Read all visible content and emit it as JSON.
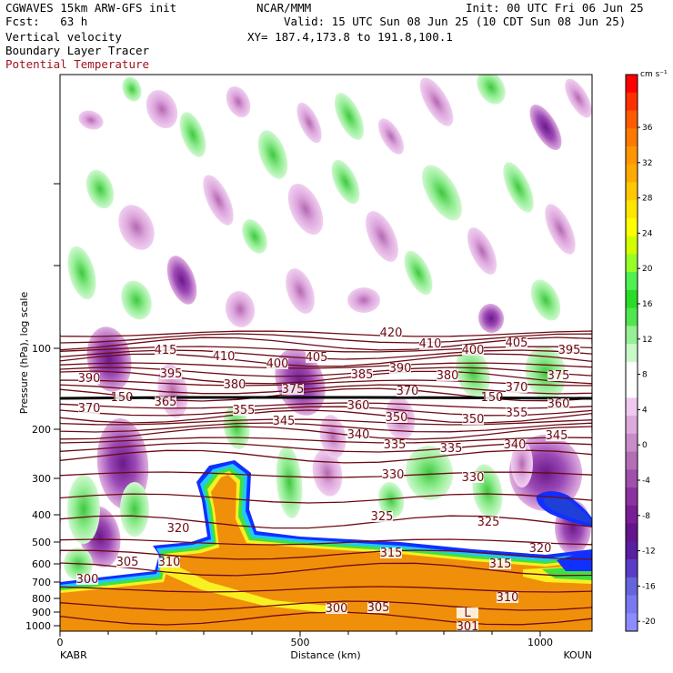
{
  "header": {
    "model": "CGWAVES 15km ARW-GFS init",
    "org": "NCAR/MMM",
    "init": "Init: 00 UTC Fri 06 Jun 25",
    "fcst": "Fcst:   63 h",
    "valid": "Valid: 15 UTC Sun 08 Jun 25 (10 CDT Sun 08 Jun 25)",
    "xy": "XY= 187.4,173.8 to 191.8,100.1",
    "field1": "Vertical velocity",
    "field2": "Boundary Layer Tracer",
    "field3": "Potential Temperature"
  },
  "axes": {
    "ylabel": "Pressure (hPa), log scale",
    "xlabel": "Distance (km)",
    "yticks": [
      "100",
      "200",
      "300",
      "400",
      "500",
      "600",
      "700",
      "800",
      "900",
      "1000"
    ],
    "xticks": [
      "0",
      "500",
      "1000"
    ],
    "left_station": "KABR",
    "right_station": "KOUN"
  },
  "colorbar": {
    "unit": "cm s⁻¹",
    "labels": [
      "36",
      "32",
      "28",
      "24",
      "20",
      "16",
      "12",
      "8",
      "4",
      "0",
      "-4",
      "-8",
      "-12",
      "-16",
      "-20"
    ]
  },
  "contours": {
    "labels": [
      {
        "t": "420",
        "x": 430,
        "y": 369
      },
      {
        "t": "410",
        "x": 473,
        "y": 381
      },
      {
        "t": "400",
        "x": 520,
        "y": 388
      },
      {
        "t": "405",
        "x": 568,
        "y": 380
      },
      {
        "t": "395",
        "x": 626,
        "y": 388
      },
      {
        "t": "415",
        "x": 182,
        "y": 388
      },
      {
        "t": "410",
        "x": 246,
        "y": 395
      },
      {
        "t": "400",
        "x": 305,
        "y": 403
      },
      {
        "t": "405",
        "x": 348,
        "y": 396
      },
      {
        "t": "385",
        "x": 398,
        "y": 415
      },
      {
        "t": "390",
        "x": 440,
        "y": 408
      },
      {
        "t": "380",
        "x": 492,
        "y": 416
      },
      {
        "t": "375",
        "x": 614,
        "y": 416
      },
      {
        "t": "390",
        "x": 98,
        "y": 419
      },
      {
        "t": "395",
        "x": 188,
        "y": 414
      },
      {
        "t": "380",
        "x": 258,
        "y": 426
      },
      {
        "t": "375",
        "x": 322,
        "y": 431
      },
      {
        "t": "370",
        "x": 448,
        "y": 433
      },
      {
        "t": "370",
        "x": 568,
        "y": 429
      },
      {
        "t": "365",
        "x": 182,
        "y": 445
      },
      {
        "t": "360",
        "x": 394,
        "y": 449
      },
      {
        "t": "360",
        "x": 614,
        "y": 447
      },
      {
        "t": "370",
        "x": 98,
        "y": 452
      },
      {
        "t": "355",
        "x": 268,
        "y": 454
      },
      {
        "t": "350",
        "x": 436,
        "y": 462
      },
      {
        "t": "350",
        "x": 520,
        "y": 464
      },
      {
        "t": "355",
        "x": 568,
        "y": 457
      },
      {
        "t": "345",
        "x": 312,
        "y": 466
      },
      {
        "t": "340",
        "x": 394,
        "y": 481
      },
      {
        "t": "345",
        "x": 612,
        "y": 482
      },
      {
        "t": "335",
        "x": 434,
        "y": 492
      },
      {
        "t": "335",
        "x": 496,
        "y": 496
      },
      {
        "t": "340",
        "x": 566,
        "y": 492
      },
      {
        "t": "330",
        "x": 432,
        "y": 525
      },
      {
        "t": "330",
        "x": 520,
        "y": 528
      },
      {
        "t": "325",
        "x": 420,
        "y": 571
      },
      {
        "t": "325",
        "x": 537,
        "y": 577
      },
      {
        "t": "320",
        "x": 196,
        "y": 584
      },
      {
        "t": "320",
        "x": 594,
        "y": 606
      },
      {
        "t": "315",
        "x": 430,
        "y": 611
      },
      {
        "t": "315",
        "x": 550,
        "y": 623
      },
      {
        "t": "305",
        "x": 140,
        "y": 621
      },
      {
        "t": "310",
        "x": 186,
        "y": 621
      },
      {
        "t": "300",
        "x": 96,
        "y": 640
      },
      {
        "t": "310",
        "x": 558,
        "y": 660
      },
      {
        "t": "300",
        "x": 370,
        "y": 672
      },
      {
        "t": "305",
        "x": 416,
        "y": 671
      },
      {
        "t": "L",
        "x": 514,
        "y": 677
      },
      {
        "t": "301",
        "x": 514,
        "y": 692
      },
      {
        "t": "150",
        "x": 134,
        "y": 440
      },
      {
        "t": "150",
        "x": 541,
        "y": 440
      }
    ]
  }
}
